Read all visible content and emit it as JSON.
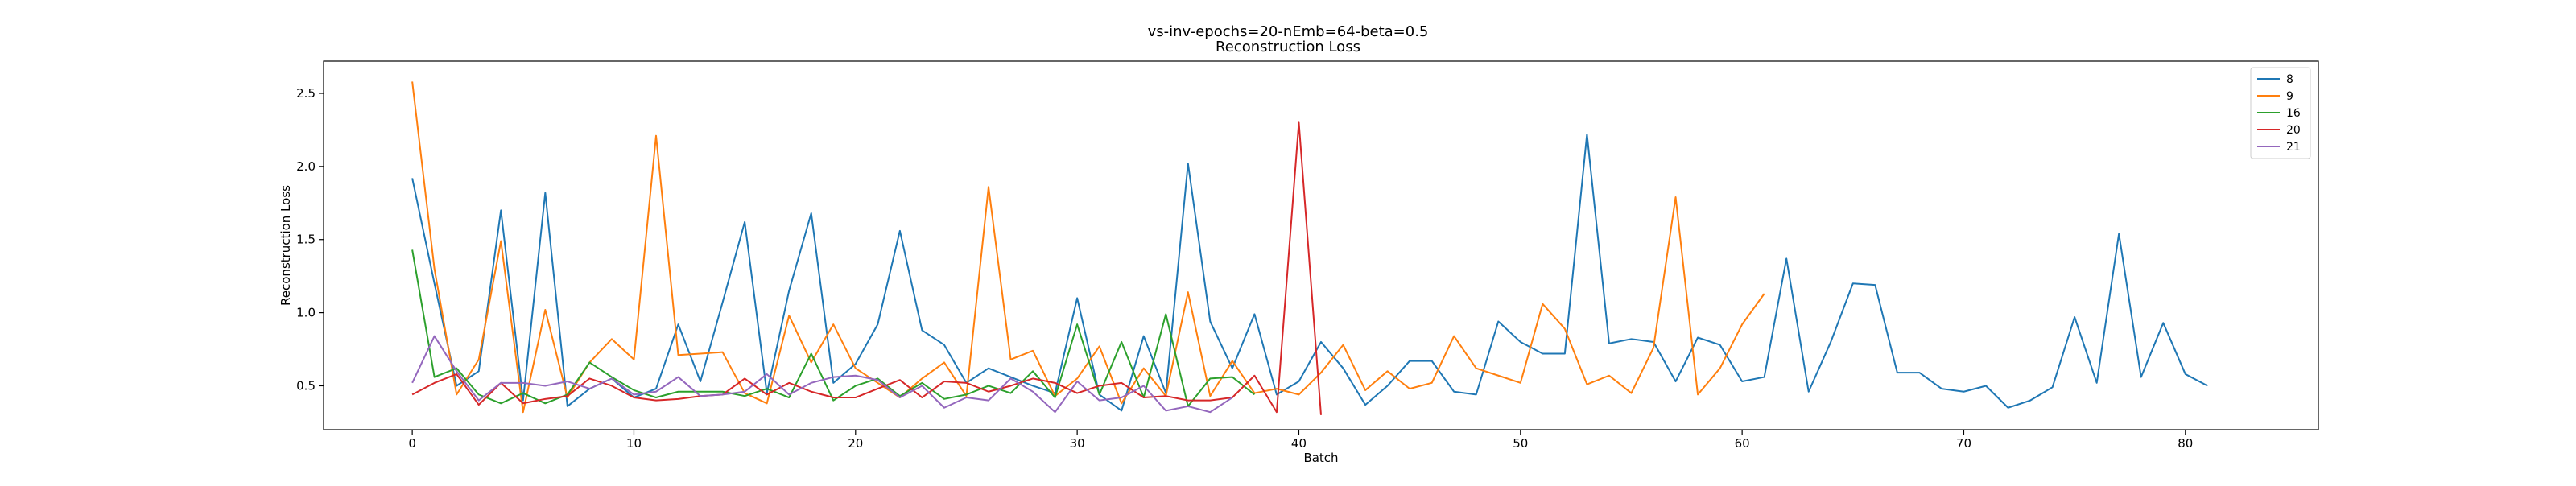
{
  "chart_data": {
    "type": "line",
    "title": "vs-inv-epochs=20-nEmb=64-beta=0.5",
    "subtitle": "Reconstruction Loss",
    "xlabel": "Batch",
    "ylabel": "Reconstruction Loss",
    "xlim": [
      -4,
      86
    ],
    "ylim": [
      0.2,
      2.72
    ],
    "xticks": [
      0,
      10,
      20,
      30,
      40,
      50,
      60,
      70,
      80
    ],
    "yticks": [
      0.5,
      1.0,
      1.5,
      2.0,
      2.5
    ],
    "ytick_labels": [
      "0.5",
      "1.0",
      "1.5",
      "2.0",
      "2.5"
    ],
    "grid": false,
    "legend_position": "top-right",
    "series": [
      {
        "name": "8",
        "color": "#1f77b4",
        "values": [
          1.92,
          1.2,
          0.5,
          0.6,
          1.7,
          0.4,
          1.82,
          0.36,
          0.48,
          0.55,
          0.42,
          0.48,
          0.92,
          0.53,
          1.07,
          1.62,
          0.45,
          1.15,
          1.68,
          0.52,
          0.65,
          0.92,
          1.56,
          0.88,
          0.78,
          0.52,
          0.62,
          0.56,
          0.5,
          0.45,
          1.1,
          0.44,
          0.33,
          0.84,
          0.45,
          2.02,
          0.94,
          0.62,
          0.99,
          0.44,
          0.53,
          0.8,
          0.62,
          0.37,
          0.5,
          0.67,
          0.67,
          0.46,
          0.44,
          0.94,
          0.8,
          0.72,
          0.72,
          2.22,
          0.79,
          0.82,
          0.8,
          0.53,
          0.83,
          0.78,
          0.53,
          0.56,
          1.37,
          0.46,
          0.8,
          1.2,
          1.19,
          0.59,
          0.59,
          0.48,
          0.46,
          0.5,
          0.35,
          0.4,
          0.49,
          0.97,
          0.52,
          1.54,
          0.56,
          0.93,
          0.58,
          0.5
        ]
      },
      {
        "name": "9",
        "color": "#ff7f0e",
        "values": [
          2.58,
          1.3,
          0.44,
          0.68,
          1.49,
          0.32,
          1.02,
          0.42,
          0.66,
          0.82,
          0.68,
          2.21,
          0.71,
          0.72,
          0.73,
          0.45,
          0.38,
          0.98,
          0.66,
          0.92,
          0.62,
          0.52,
          0.42,
          0.55,
          0.66,
          0.43,
          1.86,
          0.68,
          0.74,
          0.43,
          0.55,
          0.77,
          0.38,
          0.62,
          0.43,
          1.14,
          0.43,
          0.67,
          0.45,
          0.48,
          0.44,
          0.59,
          0.78,
          0.47,
          0.6,
          0.48,
          0.52,
          0.84,
          0.62,
          0.57,
          0.52,
          1.06,
          0.89,
          0.51,
          0.57,
          0.45,
          0.76,
          1.79,
          0.44,
          0.62,
          0.92,
          1.13
        ]
      },
      {
        "name": "16",
        "color": "#2ca02c",
        "values": [
          1.43,
          0.56,
          0.62,
          0.44,
          0.38,
          0.45,
          0.38,
          0.44,
          0.66,
          0.56,
          0.47,
          0.42,
          0.46,
          0.46,
          0.46,
          0.43,
          0.48,
          0.42,
          0.72,
          0.4,
          0.5,
          0.55,
          0.43,
          0.52,
          0.41,
          0.44,
          0.5,
          0.45,
          0.6,
          0.42,
          0.92,
          0.44,
          0.8,
          0.42,
          0.99,
          0.36,
          0.55,
          0.56,
          0.44
        ]
      },
      {
        "name": "20",
        "color": "#d62728",
        "values": [
          0.44,
          0.52,
          0.58,
          0.37,
          0.52,
          0.38,
          0.41,
          0.43,
          0.55,
          0.5,
          0.42,
          0.4,
          0.41,
          0.43,
          0.44,
          0.55,
          0.44,
          0.52,
          0.46,
          0.42,
          0.42,
          0.48,
          0.54,
          0.42,
          0.53,
          0.52,
          0.46,
          0.5,
          0.55,
          0.52,
          0.45,
          0.5,
          0.52,
          0.42,
          0.43,
          0.4,
          0.4,
          0.42,
          0.57,
          0.32,
          2.3,
          0.3
        ]
      },
      {
        "name": "21",
        "color": "#9467bd",
        "values": [
          0.52,
          0.84,
          0.6,
          0.4,
          0.52,
          0.52,
          0.5,
          0.53,
          0.48,
          0.55,
          0.44,
          0.46,
          0.56,
          0.43,
          0.44,
          0.46,
          0.58,
          0.44,
          0.52,
          0.56,
          0.57,
          0.54,
          0.42,
          0.5,
          0.35,
          0.42,
          0.4,
          0.55,
          0.46,
          0.32,
          0.53,
          0.4,
          0.42,
          0.5,
          0.33,
          0.36,
          0.32,
          0.42
        ]
      }
    ]
  }
}
